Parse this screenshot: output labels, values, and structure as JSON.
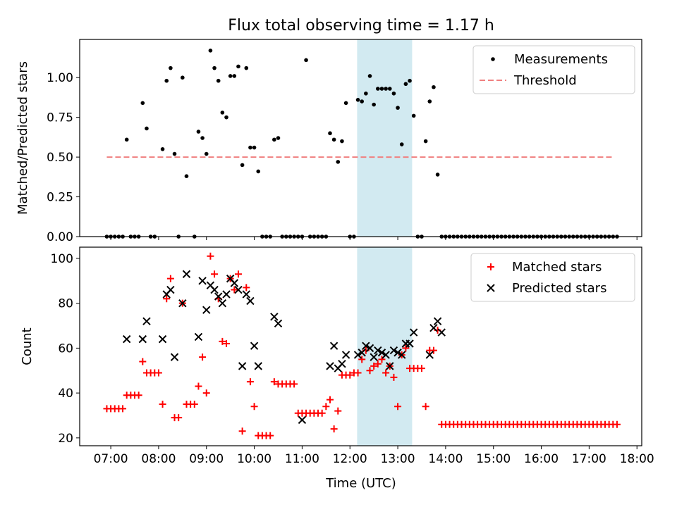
{
  "title": "Flux total observing time = 1.17 h",
  "colors": {
    "measurements": "#000000",
    "threshold": "#f08080",
    "matched": "#ff0000",
    "predicted": "#000000",
    "span": "#add8e6"
  },
  "chart_data": [
    {
      "type": "scatter",
      "ylabel": "Matched/Predicted stars",
      "xlabel": "",
      "xlim": [
        "06:21",
        "18:06"
      ],
      "ylim": [
        0,
        1.24
      ],
      "yticks": [
        "0.00",
        "0.25",
        "0.50",
        "0.75",
        "1.00"
      ],
      "ytick_values": [
        0,
        0.25,
        0.5,
        0.75,
        1.0
      ],
      "xticks": [
        "07:00",
        "08:00",
        "09:00",
        "10:00",
        "11:00",
        "12:00",
        "13:00",
        "14:00",
        "15:00",
        "16:00",
        "17:00",
        "18:00"
      ],
      "legend_position": "top-right",
      "highlight_span": [
        "12:09",
        "13:18"
      ],
      "series": [
        {
          "name": "Measurements",
          "marker": "dot",
          "x": [
            "06:55",
            "07:00",
            "07:05",
            "07:10",
            "07:15",
            "07:20",
            "07:25",
            "07:30",
            "07:35",
            "07:40",
            "07:45",
            "07:50",
            "07:55",
            "08:05",
            "08:10",
            "08:15",
            "08:20",
            "08:25",
            "08:30",
            "08:35",
            "08:45",
            "08:50",
            "08:55",
            "09:00",
            "09:05",
            "09:10",
            "09:15",
            "09:20",
            "09:25",
            "09:30",
            "09:35",
            "09:40",
            "09:45",
            "09:50",
            "09:55",
            "10:00",
            "10:05",
            "10:10",
            "10:15",
            "10:20",
            "10:25",
            "10:30",
            "10:35",
            "10:40",
            "10:45",
            "10:50",
            "10:55",
            "11:00",
            "11:05",
            "11:10",
            "11:15",
            "11:20",
            "11:25",
            "11:30",
            "11:35",
            "11:40",
            "11:45",
            "11:50",
            "11:55",
            "12:00",
            "12:05",
            "12:10",
            "12:15",
            "12:20",
            "12:25",
            "12:30",
            "12:35",
            "12:40",
            "12:45",
            "12:50",
            "12:55",
            "13:00",
            "13:05",
            "13:10",
            "13:15",
            "13:20",
            "13:25",
            "13:30",
            "13:35",
            "13:40",
            "13:45",
            "13:50",
            "13:55",
            "14:00",
            "14:05",
            "14:10",
            "14:15",
            "14:20",
            "14:25",
            "14:30",
            "14:35",
            "14:40",
            "14:45",
            "14:50",
            "14:55",
            "15:00",
            "15:05",
            "15:10",
            "15:15",
            "15:20",
            "15:25",
            "15:30",
            "15:35",
            "15:40",
            "15:45",
            "15:50",
            "15:55",
            "16:00",
            "16:05",
            "16:10",
            "16:15",
            "16:20",
            "16:25",
            "16:30",
            "16:35",
            "16:40",
            "16:45",
            "16:50",
            "16:55",
            "17:00",
            "17:05",
            "17:10",
            "17:15",
            "17:20",
            "17:25",
            "17:30",
            "17:35"
          ],
          "y": [
            0,
            0,
            0,
            0,
            0,
            0.61,
            0,
            0,
            0,
            0.84,
            0.68,
            0,
            0,
            0.55,
            0.98,
            1.06,
            0.52,
            0,
            1.0,
            0.38,
            0,
            0.66,
            0.62,
            0.52,
            1.17,
            1.06,
            0.98,
            0.78,
            0.75,
            1.01,
            1.01,
            1.07,
            0.45,
            1.06,
            0.56,
            0.56,
            0.41,
            0,
            0,
            0,
            0.61,
            0.62,
            0,
            0,
            0,
            0,
            0,
            0,
            1.11,
            0,
            0,
            0,
            0,
            0,
            0.65,
            0.61,
            0.47,
            0.6,
            0.84,
            0,
            0,
            0.86,
            0.85,
            0.9,
            1.01,
            0.83,
            0.93,
            0.93,
            0.93,
            0.93,
            0.9,
            0.81,
            0.58,
            0.96,
            0.98,
            0.76,
            0,
            0,
            0.6,
            0.85,
            0.94,
            0.39,
            0,
            0,
            0,
            0,
            0,
            0,
            0,
            0,
            0,
            0,
            0,
            0,
            0,
            0,
            0,
            0,
            0,
            0,
            0,
            0,
            0,
            0,
            0,
            0,
            0,
            0,
            0,
            0,
            0,
            0,
            0,
            0,
            0,
            0,
            0,
            0,
            0,
            0,
            0,
            0,
            0,
            0,
            0,
            0,
            0
          ]
        },
        {
          "name": "Threshold",
          "style": "dashed",
          "x": [
            "06:55",
            "17:30"
          ],
          "y": [
            0.5,
            0.5
          ]
        }
      ]
    },
    {
      "type": "scatter",
      "ylabel": "Count",
      "xlabel": "Time (UTC)",
      "xlim": [
        "06:21",
        "18:06"
      ],
      "ylim": [
        16.5,
        105
      ],
      "yticks": [
        "20",
        "40",
        "60",
        "80",
        "100"
      ],
      "ytick_values": [
        20,
        40,
        60,
        80,
        100
      ],
      "xticks": [
        "07:00",
        "08:00",
        "09:00",
        "10:00",
        "11:00",
        "12:00",
        "13:00",
        "14:00",
        "15:00",
        "16:00",
        "17:00",
        "18:00"
      ],
      "legend_position": "top-right",
      "highlight_span": [
        "12:09",
        "13:18"
      ],
      "series": [
        {
          "name": "Matched stars",
          "marker": "plus",
          "x": [
            "06:55",
            "07:00",
            "07:05",
            "07:10",
            "07:15",
            "07:20",
            "07:25",
            "07:30",
            "07:35",
            "07:40",
            "07:45",
            "07:50",
            "07:55",
            "08:00",
            "08:05",
            "08:10",
            "08:15",
            "08:20",
            "08:25",
            "08:30",
            "08:35",
            "08:40",
            "08:45",
            "08:50",
            "08:55",
            "09:00",
            "09:05",
            "09:10",
            "09:15",
            "09:20",
            "09:25",
            "09:30",
            "09:35",
            "09:40",
            "09:45",
            "09:50",
            "09:55",
            "10:00",
            "10:05",
            "10:10",
            "10:15",
            "10:20",
            "10:25",
            "10:30",
            "10:35",
            "10:40",
            "10:45",
            "10:50",
            "10:55",
            "11:00",
            "11:05",
            "11:10",
            "11:15",
            "11:20",
            "11:25",
            "11:30",
            "11:35",
            "11:40",
            "11:45",
            "11:50",
            "11:55",
            "12:00",
            "12:05",
            "12:10",
            "12:15",
            "12:20",
            "12:25",
            "12:30",
            "12:35",
            "12:40",
            "12:45",
            "12:50",
            "12:55",
            "13:00",
            "13:05",
            "13:10",
            "13:15",
            "13:20",
            "13:25",
            "13:30",
            "13:35",
            "13:40",
            "13:45",
            "13:50",
            "13:55",
            "14:00",
            "14:05",
            "14:10",
            "14:15",
            "14:20",
            "14:25",
            "14:30",
            "14:35",
            "14:40",
            "14:45",
            "14:50",
            "14:55",
            "15:00",
            "15:05",
            "15:10",
            "15:15",
            "15:20",
            "15:25",
            "15:30",
            "15:35",
            "15:40",
            "15:45",
            "15:50",
            "15:55",
            "16:00",
            "16:05",
            "16:10",
            "16:15",
            "16:20",
            "16:25",
            "16:30",
            "16:35",
            "16:40",
            "16:45",
            "16:50",
            "16:55",
            "17:00",
            "17:05",
            "17:10",
            "17:15",
            "17:20",
            "17:25",
            "17:30",
            "17:35"
          ],
          "y": [
            33,
            33,
            33,
            33,
            33,
            39,
            39,
            39,
            39,
            54,
            49,
            49,
            49,
            49,
            35,
            82,
            91,
            29,
            29,
            80,
            35,
            35,
            35,
            43,
            56,
            40,
            101,
            93,
            82,
            63,
            62,
            91,
            86,
            93,
            23,
            87,
            45,
            34,
            21,
            21,
            21,
            21,
            45,
            44,
            44,
            44,
            44,
            44,
            31,
            31,
            31,
            31,
            31,
            31,
            31,
            34,
            37,
            24,
            32,
            48,
            48,
            48,
            49,
            49,
            55,
            59,
            50,
            52,
            53,
            55,
            49,
            52,
            47,
            34,
            57,
            60,
            51,
            51,
            51,
            51,
            34,
            59,
            59,
            68,
            26,
            26,
            26,
            26,
            26,
            26,
            26,
            26,
            26,
            26,
            26,
            26,
            26,
            26,
            26,
            26,
            26,
            26,
            26,
            26,
            26,
            26,
            26,
            26,
            26,
            26,
            26,
            26,
            26,
            26,
            26,
            26,
            26,
            26,
            26,
            26,
            26,
            26,
            26,
            26,
            26,
            26,
            26,
            26,
            26
          ]
        },
        {
          "name": "Predicted stars",
          "marker": "x",
          "x": [
            "07:20",
            "07:40",
            "07:45",
            "08:05",
            "08:10",
            "08:15",
            "08:20",
            "08:30",
            "08:35",
            "08:50",
            "08:55",
            "09:00",
            "09:05",
            "09:10",
            "09:15",
            "09:20",
            "09:25",
            "09:30",
            "09:35",
            "09:40",
            "09:45",
            "09:50",
            "09:55",
            "10:00",
            "10:05",
            "10:25",
            "10:30",
            "11:00",
            "11:35",
            "11:40",
            "11:45",
            "11:50",
            "11:55",
            "12:10",
            "12:15",
            "12:20",
            "12:25",
            "12:30",
            "12:35",
            "12:40",
            "12:45",
            "12:50",
            "12:55",
            "13:00",
            "13:05",
            "13:10",
            "13:15",
            "13:20",
            "13:40",
            "13:45",
            "13:50",
            "13:55"
          ],
          "y": [
            64,
            64,
            72,
            64,
            84,
            86,
            56,
            80,
            93,
            65,
            90,
            77,
            88,
            86,
            83,
            80,
            84,
            91,
            89,
            86,
            52,
            84,
            81,
            61,
            52,
            74,
            71,
            28,
            52,
            61,
            51,
            53,
            57,
            57,
            58,
            61,
            60,
            56,
            59,
            58,
            57,
            52,
            59,
            58,
            57,
            62,
            62,
            67,
            57,
            69,
            72,
            67
          ]
        }
      ]
    }
  ]
}
